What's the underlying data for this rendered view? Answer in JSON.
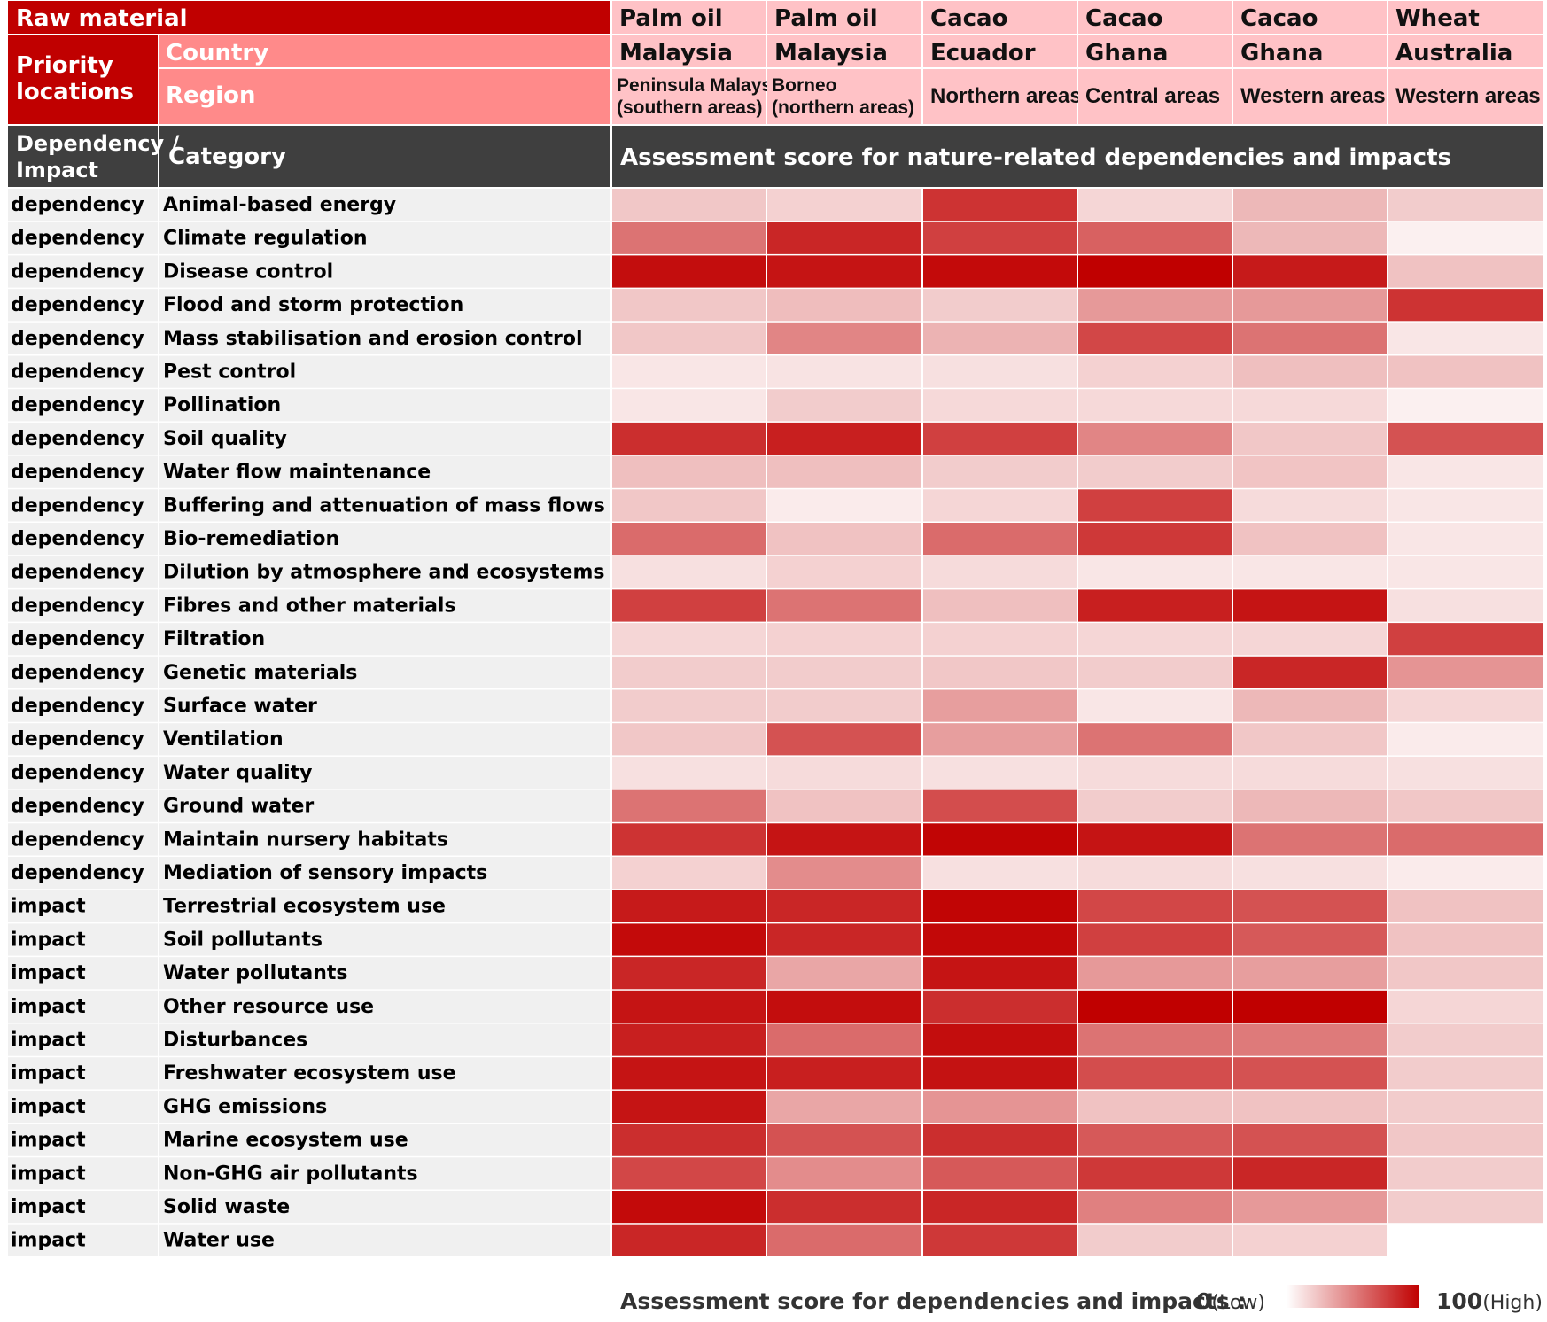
{
  "chart_data": {
    "type": "heatmap",
    "title": "Assessment score for nature-related dependencies and impacts",
    "header": {
      "raw_material_label": "Raw material",
      "priority_locations_label": "Priority locations",
      "country_label": "Country",
      "region_label": "Region",
      "dep_impact_label": "Dependency / Impact",
      "category_label": "Category"
    },
    "columns": [
      {
        "raw_material": "Palm oil",
        "country": "Malaysia",
        "region": "Peninsula Malaysia (southern areas)"
      },
      {
        "raw_material": "Palm oil",
        "country": "Malaysia",
        "region": "Borneo (northern areas)"
      },
      {
        "raw_material": "Cacao",
        "country": "Ecuador",
        "region": "Northern areas"
      },
      {
        "raw_material": "Cacao",
        "country": "Ghana",
        "region": "Central areas"
      },
      {
        "raw_material": "Cacao",
        "country": "Ghana",
        "region": "Western areas"
      },
      {
        "raw_material": "Wheat",
        "country": "Australia",
        "region": "Western areas"
      }
    ],
    "rows": [
      {
        "type": "dependency",
        "category": "Animal-based energy",
        "values": [
          22,
          18,
          80,
          16,
          28,
          20
        ]
      },
      {
        "type": "dependency",
        "category": "Climate regulation",
        "values": [
          55,
          85,
          75,
          62,
          28,
          6
        ]
      },
      {
        "type": "dependency",
        "category": "Disease control",
        "values": [
          95,
          92,
          96,
          100,
          90,
          24
        ]
      },
      {
        "type": "dependency",
        "category": "Flood and storm protection",
        "values": [
          22,
          26,
          20,
          40,
          40,
          80
        ]
      },
      {
        "type": "dependency",
        "category": "Mass stabilisation and erosion control",
        "values": [
          22,
          48,
          30,
          72,
          55,
          10
        ]
      },
      {
        "type": "dependency",
        "category": "Pest control",
        "values": [
          10,
          11,
          12,
          18,
          25,
          24
        ]
      },
      {
        "type": "dependency",
        "category": "Pollination",
        "values": [
          10,
          20,
          15,
          15,
          15,
          6
        ]
      },
      {
        "type": "dependency",
        "category": "Soil quality",
        "values": [
          82,
          88,
          75,
          48,
          22,
          68
        ]
      },
      {
        "type": "dependency",
        "category": "Water flow maintenance",
        "values": [
          25,
          25,
          20,
          20,
          23,
          10
        ]
      },
      {
        "type": "dependency",
        "category": "Buffering and attenuation of mass flows",
        "values": [
          22,
          8,
          16,
          75,
          14,
          10
        ]
      },
      {
        "type": "dependency",
        "category": "Bio-remediation",
        "values": [
          58,
          24,
          58,
          78,
          24,
          10
        ]
      },
      {
        "type": "dependency",
        "category": "Dilution by atmosphere and ecosystems",
        "values": [
          12,
          18,
          14,
          10,
          10,
          10
        ]
      },
      {
        "type": "dependency",
        "category": "Fibres and other materials",
        "values": [
          75,
          55,
          25,
          88,
          92,
          12
        ]
      },
      {
        "type": "dependency",
        "category": "Filtration",
        "values": [
          16,
          18,
          18,
          16,
          16,
          75
        ]
      },
      {
        "type": "dependency",
        "category": "Genetic materials",
        "values": [
          20,
          20,
          22,
          20,
          85,
          42
        ]
      },
      {
        "type": "dependency",
        "category": "Surface water",
        "values": [
          20,
          20,
          38,
          10,
          28,
          16
        ]
      },
      {
        "type": "dependency",
        "category": "Ventilation",
        "values": [
          22,
          68,
          38,
          55,
          22,
          8
        ]
      },
      {
        "type": "dependency",
        "category": "Water quality",
        "values": [
          12,
          14,
          12,
          14,
          14,
          12
        ]
      },
      {
        "type": "dependency",
        "category": "Ground water",
        "values": [
          55,
          24,
          70,
          20,
          28,
          22
        ]
      },
      {
        "type": "dependency",
        "category": "Maintain nursery habitats",
        "values": [
          80,
          92,
          98,
          92,
          55,
          58
        ]
      },
      {
        "type": "dependency",
        "category": "Mediation of sensory impacts",
        "values": [
          18,
          45,
          12,
          14,
          12,
          8
        ]
      },
      {
        "type": "impact",
        "category": "Terrestrial ecosystem use",
        "values": [
          90,
          85,
          98,
          72,
          68,
          24
        ]
      },
      {
        "type": "impact",
        "category": "Soil pollutants",
        "values": [
          96,
          85,
          97,
          75,
          65,
          24
        ]
      },
      {
        "type": "impact",
        "category": "Water pollutants",
        "values": [
          85,
          35,
          92,
          40,
          38,
          22
        ]
      },
      {
        "type": "impact",
        "category": "Other resource use",
        "values": [
          92,
          95,
          82,
          100,
          100,
          16
        ]
      },
      {
        "type": "impact",
        "category": "Disturbances",
        "values": [
          88,
          58,
          95,
          55,
          52,
          20
        ]
      },
      {
        "type": "impact",
        "category": "Freshwater ecosystem use",
        "values": [
          92,
          88,
          93,
          70,
          68,
          20
        ]
      },
      {
        "type": "impact",
        "category": "GHG emissions",
        "values": [
          92,
          35,
          42,
          24,
          24,
          20
        ]
      },
      {
        "type": "impact",
        "category": "Marine ecosystem use",
        "values": [
          82,
          68,
          82,
          65,
          68,
          22
        ]
      },
      {
        "type": "impact",
        "category": "Non-GHG air pollutants",
        "values": [
          72,
          45,
          65,
          78,
          85,
          20
        ]
      },
      {
        "type": "impact",
        "category": "Solid waste",
        "values": [
          96,
          82,
          85,
          50,
          40,
          20
        ]
      },
      {
        "type": "impact",
        "category": "Water use",
        "values": [
          85,
          58,
          78,
          20,
          18,
          null
        ]
      }
    ],
    "scale": {
      "label": "Assessment score for dependencies and impacts :",
      "min": 0,
      "max": 100,
      "min_label": "(Low)",
      "max_label": "(High)",
      "low_color": "#ffffff",
      "high_color": "#c00000"
    }
  }
}
